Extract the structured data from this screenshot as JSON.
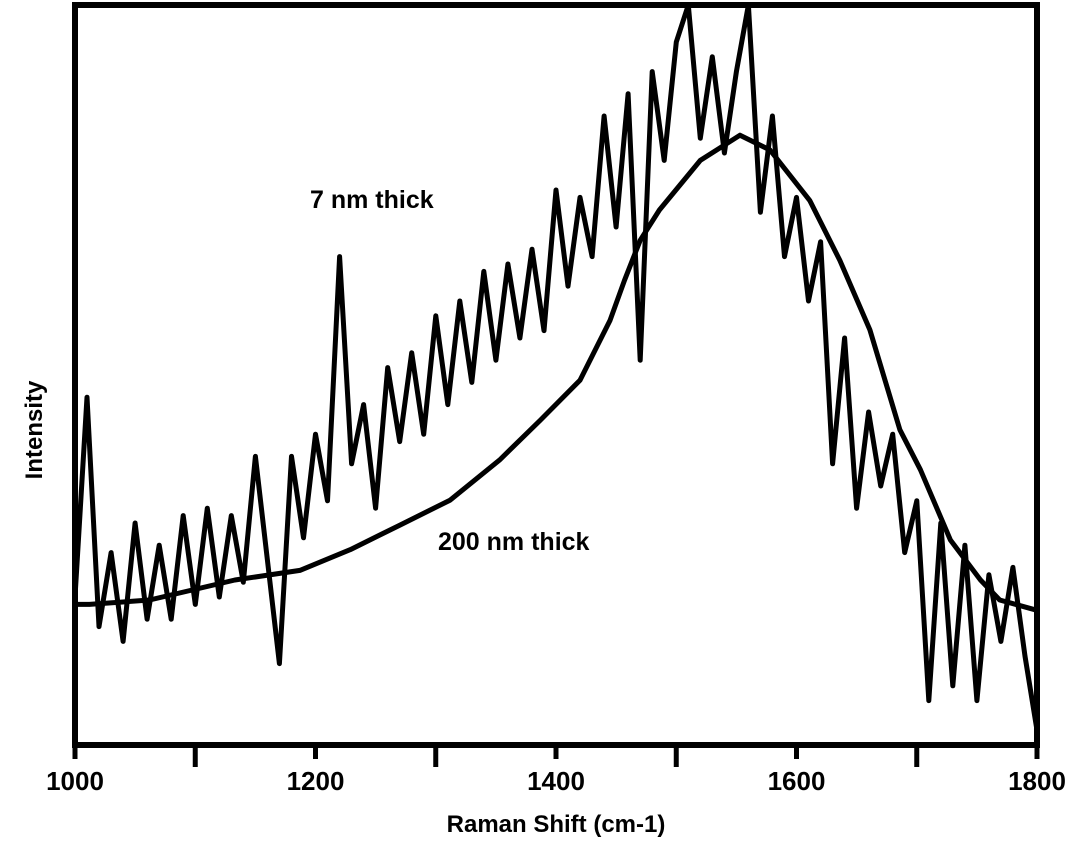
{
  "chart_data": {
    "type": "line",
    "title": "",
    "xlabel": "Raman Shift (cm-1)",
    "ylabel": "Intensity",
    "xlim": [
      1000,
      1800
    ],
    "ylim": [
      0,
      1
    ],
    "xticks": [
      1000,
      1200,
      1400,
      1600,
      1800
    ],
    "minor_xticks": [
      1100,
      1300,
      1500,
      1700
    ],
    "yticks": [],
    "grid": false,
    "legend": "none",
    "annotations": [
      {
        "text": "7 nm thick",
        "series": 0
      },
      {
        "text": "200 nm thick",
        "series": 1
      }
    ],
    "series": [
      {
        "color": "#000000",
        "x": [
          1000,
          1010,
          1020,
          1030,
          1040,
          1050,
          1060,
          1070,
          1080,
          1090,
          1100,
          1110,
          1120,
          1130,
          1140,
          1150,
          1160,
          1170,
          1180,
          1190,
          1200,
          1210,
          1220,
          1230,
          1240,
          1250,
          1260,
          1270,
          1280,
          1290,
          1300,
          1310,
          1320,
          1330,
          1340,
          1350,
          1360,
          1370,
          1380,
          1390,
          1400,
          1410,
          1420,
          1430,
          1440,
          1450,
          1460,
          1470,
          1480,
          1490,
          1500,
          1510,
          1520,
          1530,
          1540,
          1550,
          1560,
          1570,
          1580,
          1590,
          1600,
          1610,
          1620,
          1630,
          1640,
          1650,
          1660,
          1670,
          1680,
          1690,
          1700,
          1710,
          1720,
          1730,
          1740,
          1750,
          1760,
          1770,
          1780,
          1790,
          1800
        ],
        "y": [
          0.2,
          0.47,
          0.16,
          0.26,
          0.14,
          0.3,
          0.17,
          0.27,
          0.17,
          0.31,
          0.19,
          0.32,
          0.2,
          0.31,
          0.22,
          0.39,
          0.25,
          0.11,
          0.39,
          0.28,
          0.42,
          0.33,
          0.66,
          0.38,
          0.46,
          0.32,
          0.51,
          0.41,
          0.53,
          0.42,
          0.58,
          0.46,
          0.6,
          0.49,
          0.64,
          0.52,
          0.65,
          0.55,
          0.67,
          0.56,
          0.75,
          0.62,
          0.74,
          0.66,
          0.85,
          0.7,
          0.88,
          0.52,
          0.91,
          0.79,
          0.95,
          1.0,
          0.82,
          0.93,
          0.8,
          0.91,
          1.0,
          0.72,
          0.85,
          0.66,
          0.74,
          0.6,
          0.68,
          0.38,
          0.55,
          0.32,
          0.45,
          0.35,
          0.42,
          0.26,
          0.33,
          0.06,
          0.3,
          0.08,
          0.27,
          0.06,
          0.23,
          0.14,
          0.24,
          0.12,
          0.02
        ]
      },
      {
        "color": "#000000",
        "x": [
          1000,
          1012,
          1062,
          1133,
          1187,
          1229,
          1270,
          1312,
          1353,
          1387,
          1420,
          1445,
          1457,
          1470,
          1486,
          1520,
          1553,
          1578,
          1611,
          1636,
          1661,
          1686,
          1703,
          1728,
          1753,
          1769,
          1800
        ],
        "y": [
          0.19,
          0.19,
          0.196,
          0.223,
          0.236,
          0.264,
          0.297,
          0.331,
          0.385,
          0.439,
          0.493,
          0.574,
          0.628,
          0.682,
          0.723,
          0.79,
          0.824,
          0.804,
          0.736,
          0.655,
          0.561,
          0.426,
          0.372,
          0.277,
          0.223,
          0.196,
          0.182
        ]
      }
    ]
  }
}
